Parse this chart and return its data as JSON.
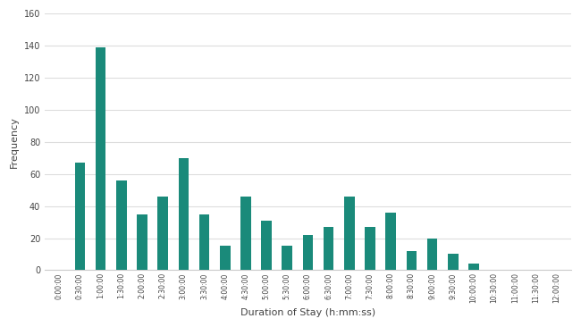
{
  "categories": [
    "0:00:00",
    "0:30:00",
    "1:00:00",
    "1:30:00",
    "2:00:00",
    "2:30:00",
    "3:00:00",
    "3:30:00",
    "4:00:00",
    "4:30:00",
    "5:00:00",
    "5:30:00",
    "6:00:00",
    "6:30:00",
    "7:00:00",
    "7:30:00",
    "8:00:00",
    "8:30:00",
    "9:00:00",
    "9:30:00",
    "10:00:00",
    "10:30:00",
    "11:00:00",
    "11:30:00",
    "12:00:00"
  ],
  "values": [
    0,
    67,
    139,
    56,
    35,
    46,
    70,
    35,
    15,
    46,
    31,
    15,
    22,
    27,
    46,
    27,
    36,
    12,
    20,
    10,
    4,
    0,
    0,
    0,
    0
  ],
  "bar_color": "#1a8a7a",
  "ylabel": "Frequency",
  "xlabel": "Duration of Stay (h:mm:ss)",
  "ylim": [
    0,
    160
  ],
  "yticks": [
    0,
    20,
    40,
    60,
    80,
    100,
    120,
    140,
    160
  ],
  "bg_color": "#ffffff",
  "grid_color": "#dddddd",
  "bar_width": 0.5
}
